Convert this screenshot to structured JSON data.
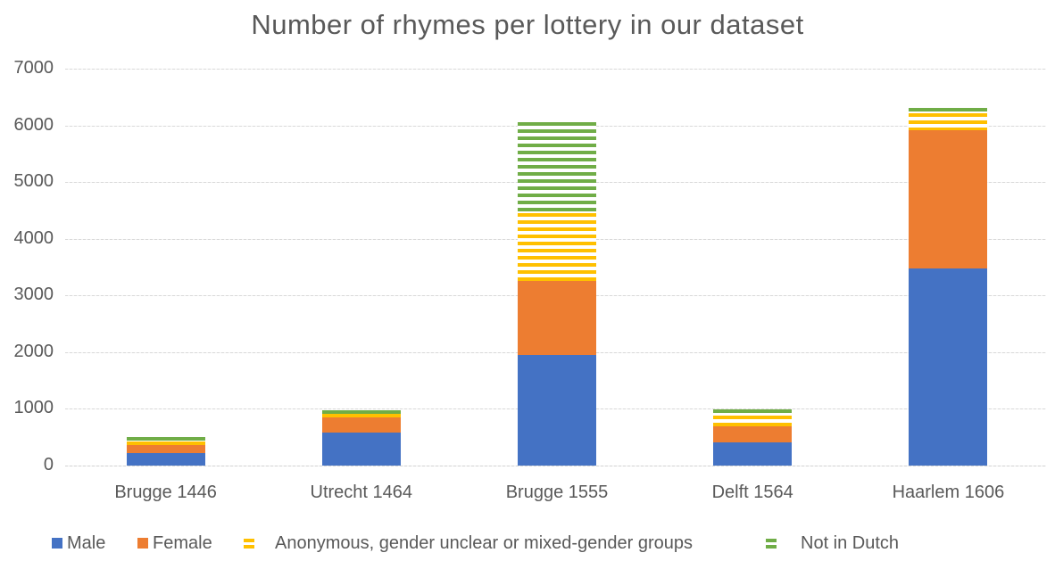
{
  "title": "Number of rhymes per lottery in our dataset",
  "colors": {
    "male": "#4472C4",
    "female": "#ED7D31",
    "anonymous": "#FFC000",
    "not_in_dutch": "#70AD47",
    "text": "#595959",
    "gridline": "#D9D9D9",
    "background": "#FFFFFF"
  },
  "chart_data": {
    "type": "bar",
    "stacked": true,
    "title": "Number of rhymes per lottery in our dataset",
    "categories": [
      "Brugge 1446",
      "Utrecht 1464",
      "Brugge 1555",
      "Delft 1564",
      "Haarlem 1606"
    ],
    "series": [
      {
        "name": "Male",
        "color": "#4472C4",
        "pattern": "solid",
        "values": [
          220,
          580,
          1950,
          410,
          3480
        ]
      },
      {
        "name": "Female",
        "color": "#ED7D31",
        "pattern": "solid",
        "values": [
          140,
          270,
          1300,
          280,
          2430
        ]
      },
      {
        "name": "Anonymous, gender unclear or mixed-gender groups",
        "color": "#FFC000",
        "pattern": "horizontal-stripes",
        "values": [
          60,
          60,
          1210,
          190,
          300
        ]
      },
      {
        "name": "Not in Dutch",
        "color": "#70AD47",
        "pattern": "horizontal-stripes",
        "values": [
          80,
          60,
          1590,
          110,
          95
        ]
      }
    ],
    "totals": [
      500,
      970,
      6050,
      990,
      6305
    ],
    "xlabel": "",
    "ylabel": "",
    "ylim": [
      0,
      7000
    ],
    "yticks": [
      0,
      1000,
      2000,
      3000,
      4000,
      5000,
      6000,
      7000
    ],
    "grid": "horizontal",
    "legend_position": "bottom"
  }
}
